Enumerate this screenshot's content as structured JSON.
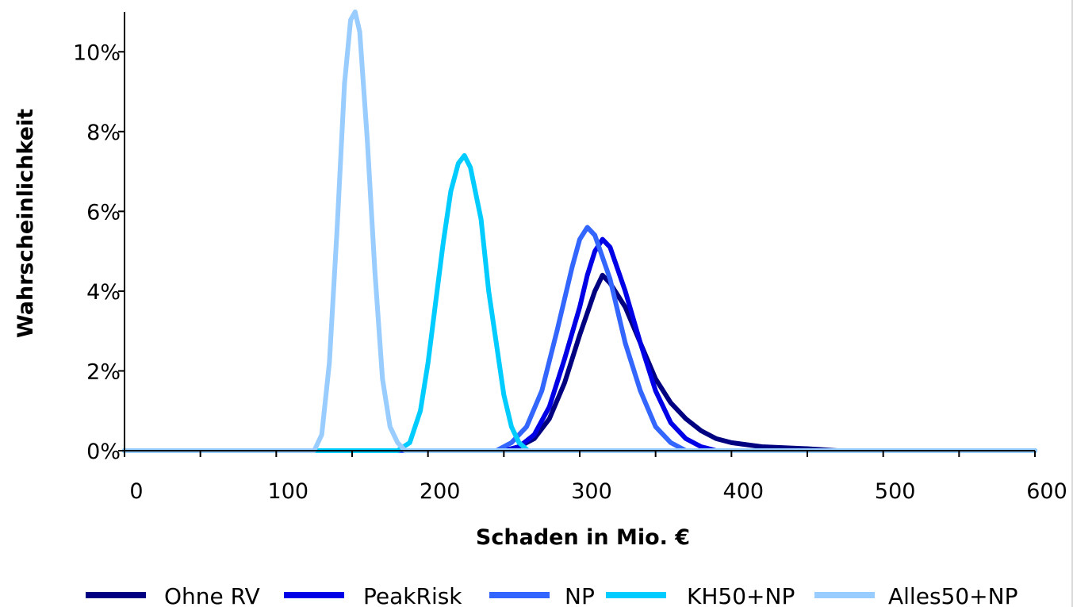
{
  "chart_data": {
    "type": "line",
    "title": "",
    "xlabel": "Schaden in Mio. €",
    "ylabel": "Wahrscheinlichkeit",
    "xlim": [
      0,
      600
    ],
    "ylim": [
      0,
      0.11
    ],
    "x_ticks": [
      0,
      100,
      200,
      300,
      400,
      500,
      600
    ],
    "x_tick_labels": [
      "0",
      "100",
      "200",
      "300",
      "400",
      "500",
      "600"
    ],
    "y_ticks": [
      0,
      0.02,
      0.04,
      0.06,
      0.08,
      0.1
    ],
    "y_tick_labels": [
      "0%",
      "2%",
      "4%",
      "6%",
      "8%",
      "10%"
    ],
    "grid": false,
    "legend_position": "bottom",
    "series": [
      {
        "name": "Ohne RV",
        "color": "#000080",
        "points": [
          [
            0,
            0
          ],
          [
            250,
            0
          ],
          [
            260,
            0.001
          ],
          [
            270,
            0.003
          ],
          [
            280,
            0.008
          ],
          [
            290,
            0.017
          ],
          [
            300,
            0.029
          ],
          [
            310,
            0.04
          ],
          [
            315,
            0.044
          ],
          [
            320,
            0.042
          ],
          [
            330,
            0.036
          ],
          [
            340,
            0.027
          ],
          [
            350,
            0.018
          ],
          [
            360,
            0.012
          ],
          [
            370,
            0.008
          ],
          [
            380,
            0.005
          ],
          [
            390,
            0.003
          ],
          [
            400,
            0.002
          ],
          [
            420,
            0.001
          ],
          [
            450,
            0.0005
          ],
          [
            470,
            0
          ],
          [
            600,
            0
          ]
        ]
      },
      {
        "name": "PeakRisk",
        "color": "#0000e6",
        "points": [
          [
            0,
            0
          ],
          [
            250,
            0
          ],
          [
            260,
            0.001
          ],
          [
            270,
            0.004
          ],
          [
            280,
            0.011
          ],
          [
            290,
            0.023
          ],
          [
            300,
            0.036
          ],
          [
            305,
            0.044
          ],
          [
            310,
            0.05
          ],
          [
            315,
            0.053
          ],
          [
            320,
            0.051
          ],
          [
            330,
            0.04
          ],
          [
            340,
            0.027
          ],
          [
            350,
            0.015
          ],
          [
            360,
            0.007
          ],
          [
            370,
            0.003
          ],
          [
            380,
            0.001
          ],
          [
            390,
            0
          ],
          [
            600,
            0
          ]
        ]
      },
      {
        "name": "NP",
        "color": "#3366ff",
        "points": [
          [
            0,
            0
          ],
          [
            245,
            0
          ],
          [
            255,
            0.002
          ],
          [
            265,
            0.006
          ],
          [
            275,
            0.015
          ],
          [
            285,
            0.03
          ],
          [
            295,
            0.046
          ],
          [
            300,
            0.053
          ],
          [
            305,
            0.056
          ],
          [
            310,
            0.054
          ],
          [
            320,
            0.043
          ],
          [
            330,
            0.027
          ],
          [
            340,
            0.015
          ],
          [
            350,
            0.006
          ],
          [
            360,
            0.002
          ],
          [
            370,
            0
          ],
          [
            600,
            0
          ]
        ]
      },
      {
        "name": "KH50+NP",
        "color": "#00ccff",
        "points": [
          [
            0,
            0
          ],
          [
            180,
            0
          ],
          [
            188,
            0.002
          ],
          [
            195,
            0.01
          ],
          [
            200,
            0.022
          ],
          [
            205,
            0.037
          ],
          [
            210,
            0.052
          ],
          [
            215,
            0.065
          ],
          [
            220,
            0.072
          ],
          [
            224,
            0.074
          ],
          [
            228,
            0.071
          ],
          [
            235,
            0.058
          ],
          [
            240,
            0.04
          ],
          [
            245,
            0.027
          ],
          [
            250,
            0.014
          ],
          [
            255,
            0.006
          ],
          [
            260,
            0.002
          ],
          [
            266,
            0
          ],
          [
            600,
            0
          ]
        ]
      },
      {
        "name": "Alles50+NP",
        "color": "#99ccff",
        "points": [
          [
            0,
            0
          ],
          [
            125,
            0
          ],
          [
            130,
            0.004
          ],
          [
            135,
            0.022
          ],
          [
            140,
            0.055
          ],
          [
            145,
            0.092
          ],
          [
            149,
            0.108
          ],
          [
            152,
            0.11
          ],
          [
            155,
            0.105
          ],
          [
            160,
            0.078
          ],
          [
            165,
            0.045
          ],
          [
            170,
            0.018
          ],
          [
            175,
            0.006
          ],
          [
            180,
            0.002
          ],
          [
            185,
            0
          ],
          [
            600,
            0
          ]
        ]
      }
    ]
  }
}
